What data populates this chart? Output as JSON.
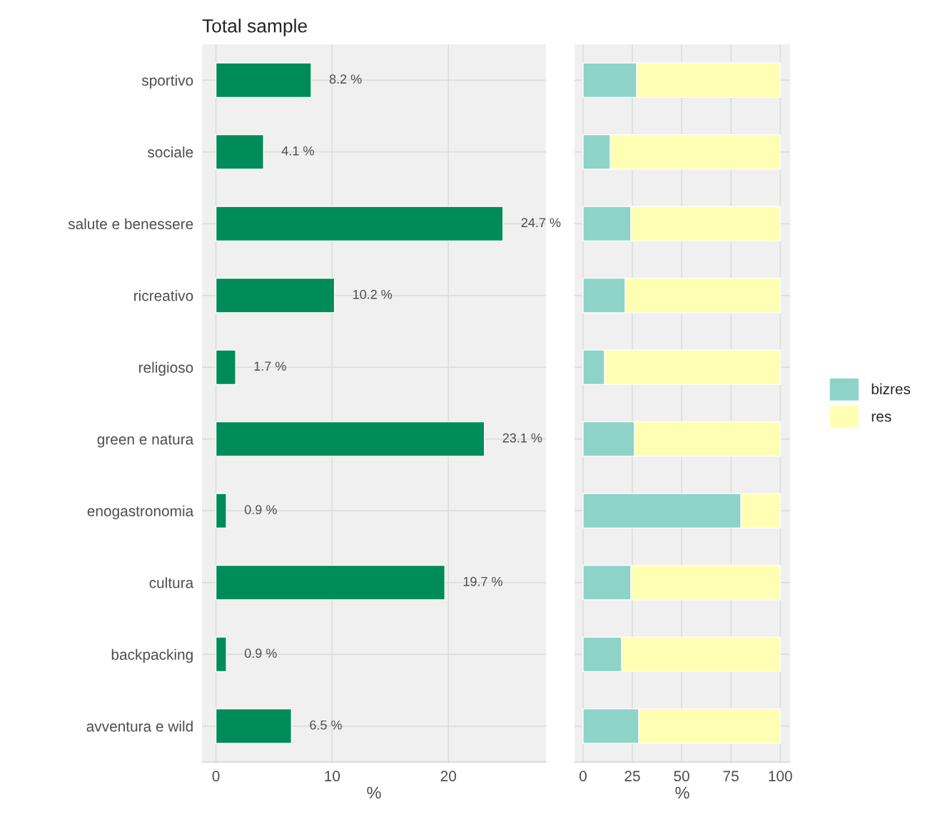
{
  "chart_data": [
    {
      "type": "bar",
      "orientation": "horizontal",
      "title": "Total sample",
      "xlabel": "%",
      "categories": [
        "sportivo",
        "sociale",
        "salute e benessere",
        "ricreativo",
        "religioso",
        "green e natura",
        "enogastronomia",
        "cultura",
        "backpacking",
        "avventura e wild"
      ],
      "values": [
        8.2,
        4.1,
        24.7,
        10.2,
        1.7,
        23.1,
        0.9,
        19.7,
        0.9,
        6.5
      ],
      "value_labels": [
        "8.2 %",
        "4.1 %",
        "24.7 %",
        "10.2 %",
        "1.7 %",
        "23.1 %",
        "0.9 %",
        "19.7 %",
        "0.9 %",
        "6.5 %"
      ],
      "color": "#008c5a",
      "xlim": [
        -1.2,
        28.4
      ],
      "xticks": [
        0,
        10,
        20
      ],
      "grid": true
    },
    {
      "type": "bar",
      "orientation": "horizontal",
      "stacked": true,
      "xlabel": "%",
      "series": [
        {
          "name": "bizres",
          "color": "#8dd3c7",
          "values": [
            27.2,
            13.8,
            24.3,
            21.4,
            10.9,
            26.1,
            80.1,
            24.3,
            19.6,
            28.3
          ]
        },
        {
          "name": "res",
          "color": "#ffffb3",
          "values": [
            72.8,
            86.2,
            75.7,
            78.6,
            89.1,
            73.9,
            19.9,
            75.7,
            80.4,
            71.7
          ]
        }
      ],
      "xlim": [
        -4.3,
        105
      ],
      "xticks": [
        0,
        25,
        50,
        75,
        100
      ],
      "tick_labels": "x",
      "grid": true,
      "legend": "right"
    }
  ]
}
